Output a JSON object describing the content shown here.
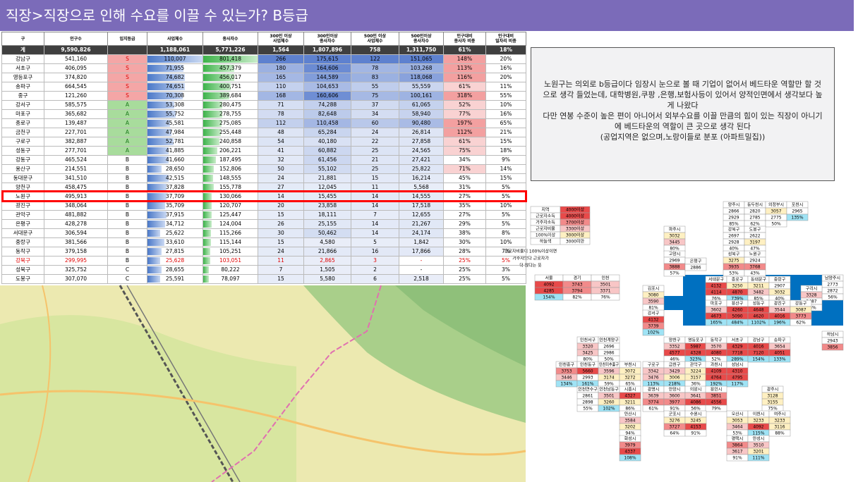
{
  "header": {
    "title": "직장>직장으로 인해 수요를 이끌 수 있는가? B등급"
  },
  "table": {
    "header": [
      "구",
      "인구수",
      "입지등급",
      "사업체수",
      "종사자수",
      "300인 이상\n사업체수",
      "300인이상\n종사자수",
      "500인 이상\n사업체수",
      "500인이상\n종사자수",
      "인구대비\n종사자 비중",
      "인구대비\n일자리 비중"
    ],
    "rows": [
      [
        "계",
        "9,590,826",
        null,
        "1,188,061",
        "5,771,226",
        "1,564",
        "1,807,896",
        "758",
        "1,311,750",
        "61%",
        "18%"
      ],
      [
        "강남구",
        "541,160",
        "S",
        "110,007",
        "801,418",
        "266",
        "175,615",
        "122",
        "151,065",
        "148%",
        "20%"
      ],
      [
        "서초구",
        "406,095",
        "S",
        "71,955",
        "457,379",
        "180",
        "164,606",
        "78",
        "103,268",
        "113%",
        "16%"
      ],
      [
        "영등포구",
        "374,820",
        "S",
        "74,682",
        "456,017",
        "165",
        "144,589",
        "83",
        "118,068",
        "116%",
        "20%"
      ],
      [
        "송파구",
        "664,545",
        "S",
        "74,651",
        "400,751",
        "110",
        "104,653",
        "55",
        "55,559",
        "61%",
        "11%"
      ],
      [
        "중구",
        "121,260",
        "S",
        "70,308",
        "389,684",
        "168",
        "160,606",
        "75",
        "100,161",
        "318%",
        "55%"
      ],
      [
        "강서구",
        "585,575",
        "A",
        "53,308",
        "280,475",
        "71",
        "74,288",
        "37",
        "61,065",
        "52%",
        "10%"
      ],
      [
        "마포구",
        "365,682",
        "A",
        "55,752",
        "278,755",
        "78",
        "82,648",
        "34",
        "58,940",
        "77%",
        "16%"
      ],
      [
        "종로구",
        "139,487",
        "A",
        "45,581",
        "275,085",
        "112",
        "110,458",
        "60",
        "90,480",
        "197%",
        "65%"
      ],
      [
        "금천구",
        "227,701",
        "A",
        "47,984",
        "255,448",
        "48",
        "65,284",
        "24",
        "26,814",
        "112%",
        "21%"
      ],
      [
        "구로구",
        "382,887",
        "A",
        "52,781",
        "240,858",
        "54",
        "40,180",
        "22",
        "27,858",
        "61%",
        "15%"
      ],
      [
        "성동구",
        "277,701",
        "A",
        "41,885",
        "206,221",
        "41",
        "60,882",
        "25",
        "24,565",
        "75%",
        "18%"
      ],
      [
        "강동구",
        "465,524",
        "B",
        "41,660",
        "187,495",
        "32",
        "61,456",
        "21",
        "27,421",
        "34%",
        "9%"
      ],
      [
        "용산구",
        "214,551",
        "B",
        "28,650",
        "152,806",
        "50",
        "55,102",
        "25",
        "25,822",
        "71%",
        "14%"
      ],
      [
        "동대문구",
        "341,510",
        "B",
        "42,515",
        "148,555",
        "24",
        "21,881",
        "15",
        "16,214",
        "45%",
        "15%"
      ],
      [
        "양천구",
        "458,475",
        "B",
        "37,828",
        "155,778",
        "27",
        "12,045",
        "11",
        "5,568",
        "31%",
        "5%"
      ],
      [
        "노원구",
        "495,913",
        "B",
        "37,709",
        "130,066",
        "14",
        "15,455",
        "14",
        "14,555",
        "27%",
        "5%"
      ],
      [
        "광진구",
        "348,064",
        "B",
        "35,709",
        "120,707",
        "20",
        "23,858",
        "14",
        "17,518",
        "35%",
        "10%"
      ],
      [
        "관악구",
        "481,882",
        "B",
        "37,915",
        "125,447",
        "15",
        "18,111",
        "7",
        "12,655",
        "27%",
        "5%"
      ],
      [
        "은평구",
        "428,278",
        "B",
        "34,712",
        "124,004",
        "26",
        "25,155",
        "14",
        "21,267",
        "29%",
        "5%"
      ],
      [
        "서대문구",
        "306,594",
        "B",
        "25,622",
        "115,266",
        "30",
        "50,462",
        "14",
        "24,174",
        "38%",
        "8%"
      ],
      [
        "중랑구",
        "381,566",
        "B",
        "33,610",
        "115,144",
        "15",
        "4,580",
        "5",
        "1,842",
        "30%",
        "10%"
      ],
      [
        "동작구",
        "379,158",
        "B",
        "27,815",
        "105,251",
        "24",
        "21,866",
        "16",
        "17,866",
        "28%",
        "7%"
      ],
      [
        "강북구",
        "299,995",
        "B",
        "25,628",
        "103,051",
        "11",
        "2,865",
        "3",
        "-",
        "25%",
        "5%"
      ],
      [
        "성북구",
        "325,752",
        "C",
        "28,655",
        "80,222",
        "7",
        "1,505",
        "2",
        "-",
        "25%",
        "3%"
      ],
      [
        "도봉구",
        "307,070",
        "C",
        "25,591",
        "78,097",
        "15",
        "5,580",
        "6",
        "2,518",
        "25%",
        "5%"
      ]
    ]
  },
  "note": {
    "paragraphs": [
      "노원구는 의외로 b등급이다 임장시 눈으로 볼 때 기업이 없어서 베드타운 역할만 할 것으로 생각 들었는데, 대학병원,쿠팡 ,은행,보험사등이 있어서 양적인면에서 생각보다 높게 나왔다",
      "다만 연봉 수준이 높은 편이 아니어서 외부수요를 이끌 만큼의 힘이 있는 직장이 아니기에 베드타운의 역할이 큰 곳으로 생각 된다",
      "(공업지역은 없으며,노랑이들로 분포 (아파트밀집))"
    ]
  },
  "legend": {
    "rows": [
      [
        "지역",
        "4000이상"
      ],
      [
        "근로자소득",
        "4000이상"
      ],
      [
        "거주자소득",
        "3700이상"
      ],
      [
        "근로자비율",
        "3300이상"
      ],
      [
        "100%이상",
        "3000이상"
      ],
      [
        "하늘색",
        "3000미만"
      ]
    ],
    "note": [
      "근로자비율이 100%이상이면",
      "거주자보다 근로자가",
      "더 많다는 뜻"
    ]
  },
  "summary": [
    {
      "name": "서울",
      "lines": [
        "4092",
        "4285",
        "154%"
      ]
    },
    {
      "name": "경기",
      "lines": [
        "3743",
        "3794",
        "82%"
      ]
    },
    {
      "name": "인천",
      "lines": [
        "3501",
        "3371",
        "76%"
      ]
    }
  ],
  "tiles": [
    {
      "name": "양주시",
      "lines": [
        "2866",
        "2929",
        "85%"
      ]
    },
    {
      "name": "동두천시",
      "lines": [
        "2820",
        "2785",
        "62%"
      ]
    },
    {
      "name": "의정부시",
      "lines": [
        "3057",
        "2775",
        "50%"
      ]
    },
    {
      "name": "포천시",
      "lines": [
        "2965",
        "135%"
      ]
    },
    {
      "name": "파주시",
      "lines": [
        "3032",
        "3445",
        "80%"
      ]
    },
    {
      "name": "강북구",
      "lines": [
        "2697",
        "2928",
        "40%"
      ]
    },
    {
      "name": "도봉구",
      "lines": [
        "2622",
        "3197",
        "47%"
      ]
    },
    {
      "name": "고양시",
      "lines": [
        "2969",
        "3888",
        "57%"
      ]
    },
    {
      "name": "은평구",
      "lines": [
        "2886"
      ]
    },
    {
      "name": "성북구",
      "lines": [
        "3275",
        "3935",
        "53%"
      ]
    },
    {
      "name": "노원구",
      "lines": [
        "2924",
        "3768",
        "43%"
      ]
    },
    {
      "name": "남양주시",
      "lines": [
        "2773",
        "2872",
        "56%"
      ]
    },
    {
      "name": "김포시",
      "lines": [
        "3080",
        "3590",
        "81%"
      ]
    },
    {
      "name": "서대문구",
      "lines": [
        "4132",
        "4114",
        "76%"
      ]
    },
    {
      "name": "종로구",
      "lines": [
        "3250",
        "4870",
        "739%"
      ]
    },
    {
      "name": "동대문구",
      "lines": [
        "3211",
        "3482",
        "85%"
      ]
    },
    {
      "name": "중랑구",
      "lines": [
        "2907",
        "3032",
        "40%"
      ]
    },
    {
      "name": "구리시",
      "lines": [
        "3328",
        "2487",
        "56%"
      ]
    },
    {
      "name": "강서구",
      "lines": [
        "4132",
        "3739",
        "102%"
      ]
    },
    {
      "name": "마포구",
      "lines": [
        "3602",
        "4673",
        "165%"
      ]
    },
    {
      "name": "용산구",
      "lines": [
        "4260",
        "5090",
        "484%"
      ]
    },
    {
      "name": "성동구",
      "lines": [
        "4648",
        "4620",
        "1102%"
      ]
    },
    {
      "name": "광진구",
      "lines": [
        "3544",
        "4016",
        "196%"
      ]
    },
    {
      "name": "강동구",
      "lines": [
        "3087",
        "3773",
        "62%"
      ]
    },
    {
      "name": "하남시",
      "lines": [
        "2943",
        "3856"
      ]
    },
    {
      "name": "인천서구",
      "lines": [
        "3320",
        "3425",
        "80%"
      ]
    },
    {
      "name": "인천계양구",
      "lines": [
        "2696",
        "2986",
        "50%"
      ]
    },
    {
      "name": "양천구",
      "lines": [
        "3352",
        "4577",
        "46%"
      ]
    },
    {
      "name": "영등포구",
      "lines": [
        "5987",
        "4328",
        "323%"
      ]
    },
    {
      "name": "동작구",
      "lines": [
        "3570",
        "4080",
        "52%"
      ]
    },
    {
      "name": "서초구",
      "lines": [
        "4329",
        "7718",
        "289%"
      ]
    },
    {
      "name": "강남구",
      "lines": [
        "4016",
        "7120",
        "154%"
      ]
    },
    {
      "name": "송파구",
      "lines": [
        "3654",
        "4051",
        "133%"
      ]
    },
    {
      "name": "인천중구",
      "lines": [
        "3753",
        "3446",
        "134%"
      ]
    },
    {
      "name": "인천동구",
      "lines": [
        "5660",
        "2993",
        "161%"
      ]
    },
    {
      "name": "인천미추홀구",
      "lines": [
        "3596",
        "3174",
        "59%"
      ]
    },
    {
      "name": "부천시",
      "lines": [
        "3072",
        "3272",
        "65%"
      ]
    },
    {
      "name": "구로구",
      "lines": [
        "3342",
        "3476",
        "113%"
      ]
    },
    {
      "name": "금천구",
      "lines": [
        "3429",
        "3006",
        "218%"
      ]
    },
    {
      "name": "관악구",
      "lines": [
        "3224",
        "3157",
        "36%"
      ]
    },
    {
      "name": "과천시",
      "lines": [
        "4109",
        "4764",
        "192%"
      ]
    },
    {
      "name": "성남시",
      "lines": [
        "4310",
        "4795",
        "117%"
      ]
    },
    {
      "name": "인천연수구",
      "lines": [
        "2861",
        "2898",
        "55%"
      ]
    },
    {
      "name": "인천남동구",
      "lines": [
        "3501",
        "3260",
        "102%"
      ]
    },
    {
      "name": "시흥시",
      "lines": [
        "4327",
        "3211",
        "86%"
      ]
    },
    {
      "name": "광명시",
      "lines": [
        "3639",
        "3774",
        "61%"
      ]
    },
    {
      "name": "안양시",
      "lines": [
        "3600",
        "3977",
        "91%"
      ]
    },
    {
      "name": "의왕시",
      "lines": [
        "3641",
        "4086",
        "56%"
      ]
    },
    {
      "name": "용인시",
      "lines": [
        "3851",
        "4556",
        "79%"
      ]
    },
    {
      "name": "광주시",
      "lines": [
        "3128",
        "3155",
        "75%"
      ]
    },
    {
      "name": "안산시",
      "lines": [
        "3584",
        "3202",
        "94%"
      ]
    },
    {
      "name": "군포시",
      "lines": [
        "3276",
        "3727",
        "64%"
      ]
    },
    {
      "name": "수원시",
      "lines": [
        "3245",
        "4153",
        "91%"
      ]
    },
    {
      "name": "오산시",
      "lines": [
        "3053",
        "3464",
        "53%"
      ]
    },
    {
      "name": "이천시",
      "lines": [
        "3233",
        "4092",
        "115%"
      ]
    },
    {
      "name": "여주시",
      "lines": [
        "3233",
        "3116",
        "88%"
      ]
    },
    {
      "name": "화성시",
      "lines": [
        "3979",
        "4337",
        "108%"
      ]
    },
    {
      "name": "평택시",
      "lines": [
        "3864",
        "3617",
        "91%"
      ]
    },
    {
      "name": "안성시",
      "lines": [
        "3510",
        "3201",
        "111%"
      ]
    }
  ]
}
